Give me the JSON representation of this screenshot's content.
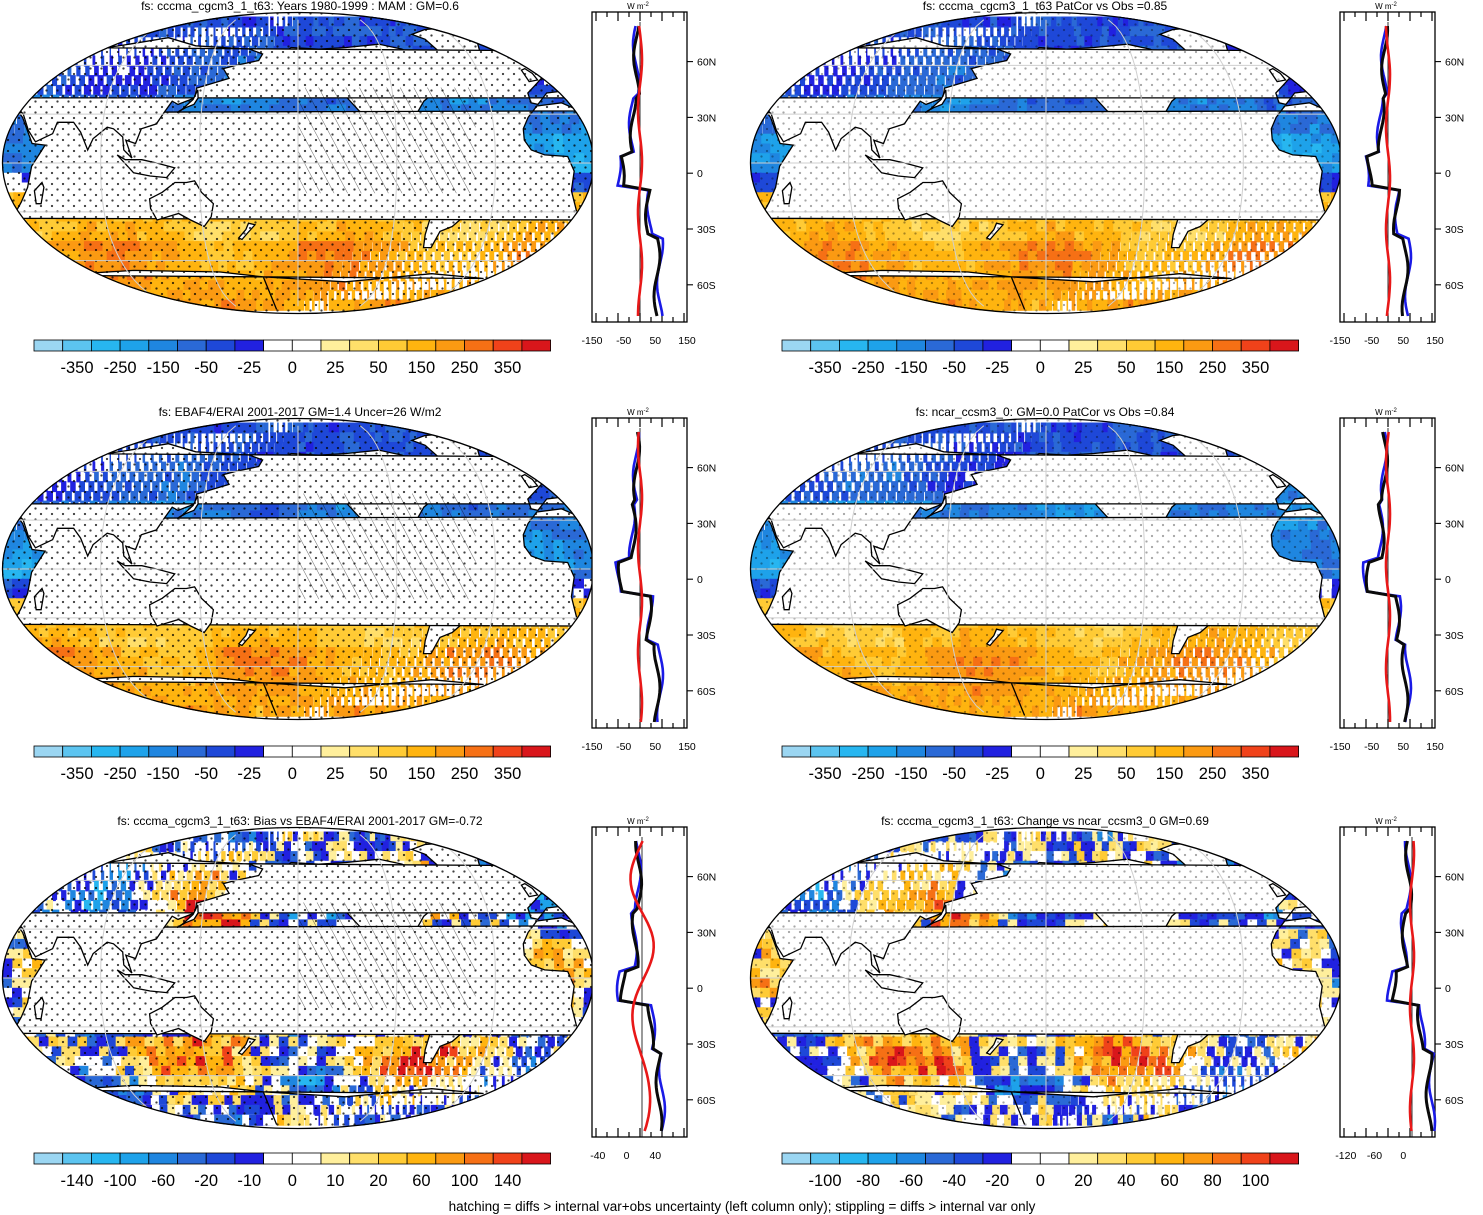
{
  "colors": {
    "neg": [
      "#2121e0",
      "#1e48d8",
      "#2a69d6",
      "#1f86e0",
      "#1ea2ea",
      "#27b6f0",
      "#5cc4f0",
      "#9bd6f2"
    ],
    "pos": [
      "#ffef9c",
      "#ffdf6a",
      "#ffcb35",
      "#ffb40f",
      "#fb9a12",
      "#f67015",
      "#f0421a",
      "#d9161b"
    ],
    "land": "#ffffff",
    "obs_line": "#0a0a0a",
    "model_line": "#1a1ae6",
    "bias_line": "#e81818"
  },
  "footer": "hatching = diffs > internal var+obs uncertainty (left column only); stippling = diffs > internal var only",
  "panels": [
    {
      "id": "a",
      "title": "fs: cccma_cgcm3_1_t63: Years 1980-1999 : MAM : GM=0.6",
      "field": "model-clim",
      "colorbar_labels": [
        "-350",
        "-250",
        "-150",
        "-50",
        "-25",
        "0",
        "25",
        "50",
        "150",
        "250",
        "350"
      ],
      "profile": {
        "unit": "W m",
        "unit_sup": "-2",
        "xticks": [
          "-150",
          "-50",
          "50",
          "150"
        ],
        "lat_labels": [
          "60N",
          "30N",
          "0",
          "30S",
          "60S"
        ]
      }
    },
    {
      "id": "b",
      "title": "fs: cccma_cgcm3_1_t63 PatCor vs Obs =0.85",
      "field": "model-clim",
      "colorbar_labels": [
        "-350",
        "-250",
        "-150",
        "-50",
        "-25",
        "0",
        "25",
        "50",
        "150",
        "250",
        "350"
      ],
      "profile": {
        "unit": "W m",
        "unit_sup": "-2",
        "xticks": [
          "-150",
          "-50",
          "50",
          "150"
        ],
        "lat_labels": [
          "60N",
          "30N",
          "0",
          "30S",
          "60S"
        ]
      }
    },
    {
      "id": "c",
      "title": "fs: EBAF4/ERAI 2001-2017 GM=1.4 Uncer=26 W/m2",
      "field": "obs-clim",
      "colorbar_labels": [
        "-350",
        "-250",
        "-150",
        "-50",
        "-25",
        "0",
        "25",
        "50",
        "150",
        "250",
        "350"
      ],
      "profile": {
        "unit": "W m",
        "unit_sup": "-2",
        "xticks": [
          "-150",
          "-50",
          "50",
          "150"
        ],
        "lat_labels": [
          "60N",
          "30N",
          "0",
          "30S",
          "60S"
        ]
      }
    },
    {
      "id": "d",
      "title": "fs: ncar_ccsm3_0: GM=0.0 PatCor vs Obs =0.84",
      "field": "model2-clim",
      "colorbar_labels": [
        "-350",
        "-250",
        "-150",
        "-50",
        "-25",
        "0",
        "25",
        "50",
        "150",
        "250",
        "350"
      ],
      "profile": {
        "unit": "W m",
        "unit_sup": "-2",
        "xticks": [
          "-150",
          "-50",
          "50",
          "150"
        ],
        "lat_labels": [
          "60N",
          "30N",
          "0",
          "30S",
          "60S"
        ]
      }
    },
    {
      "id": "e",
      "title": "fs: cccma_cgcm3_1_t63: Bias vs EBAF4/ERAI 2001-2017 GM=-0.72",
      "field": "bias",
      "colorbar_labels": [
        "-140",
        "-100",
        "-60",
        "-20",
        "-10",
        "0",
        "10",
        "20",
        "60",
        "100",
        "140"
      ],
      "profile": {
        "unit": "W m",
        "unit_sup": "-2",
        "xticks": [
          "-40",
          "0",
          "40"
        ],
        "lat_labels": [
          "60N",
          "30N",
          "0",
          "30S",
          "60S"
        ]
      }
    },
    {
      "id": "f",
      "title": "fs: cccma_cgcm3_1_t63: Change vs ncar_ccsm3_0 GM=0.69",
      "field": "change",
      "colorbar_labels": [
        "-100",
        "-80",
        "-60",
        "-40",
        "-20",
        "0",
        "20",
        "40",
        "60",
        "80",
        "100"
      ],
      "profile": {
        "unit": "W m",
        "unit_sup": "-2",
        "xticks": [
          "-120",
          "-60",
          "0"
        ],
        "lat_labels": [
          "60N",
          "30N",
          "0",
          "30S",
          "60S"
        ]
      }
    }
  ]
}
